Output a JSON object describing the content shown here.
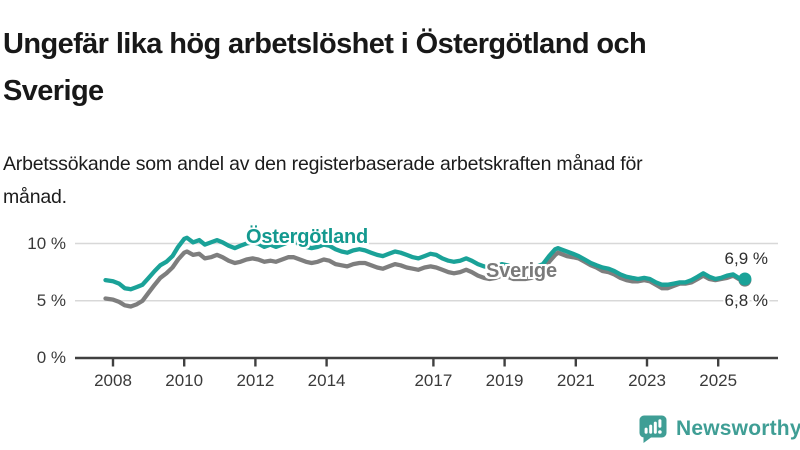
{
  "header": {
    "title": "Ungefär lika hög arbetslöshet i Östergötland och Sverige",
    "subtitle": "Arbetssökande som andel av den registerbaserade arbetskraften månad för månad."
  },
  "chart_data": {
    "type": "line",
    "title": "Ungefär lika hög arbetslöshet i Östergötland och Sverige",
    "subtitle": "Arbetssökande som andel av den registerbaserade arbetskraften månad för månad.",
    "unit": "%",
    "xlabel": "",
    "ylabel": "",
    "x_range": [
      2007.7,
      2026.6
    ],
    "ylim": [
      0,
      10.9
    ],
    "grid": "horizontal",
    "x_ticks": [
      "2008",
      "2010",
      "2012",
      "2014",
      "2017",
      "2019",
      "2021",
      "2023",
      "2025"
    ],
    "x_tick_years": [
      2008,
      2010,
      2012,
      2014,
      2017,
      2019,
      2021,
      2023,
      2025
    ],
    "y_ticks": [
      {
        "value": 0,
        "label": "0 %"
      },
      {
        "value": 5,
        "label": "5 %"
      },
      {
        "value": 10,
        "label": "10 %"
      }
    ],
    "legend_position": "inline-labels-on-lines",
    "series": [
      {
        "name": "Östergötland",
        "color": "#1aa298",
        "end_label": "6,9 %",
        "end_value": 6.9,
        "end_dot": true,
        "points": [
          [
            2007.79,
            6.8
          ],
          [
            2008.0,
            6.7
          ],
          [
            2008.17,
            6.5
          ],
          [
            2008.33,
            6.1
          ],
          [
            2008.5,
            6.0
          ],
          [
            2008.67,
            6.2
          ],
          [
            2008.83,
            6.4
          ],
          [
            2009.0,
            7.0
          ],
          [
            2009.17,
            7.6
          ],
          [
            2009.33,
            8.1
          ],
          [
            2009.5,
            8.4
          ],
          [
            2009.67,
            8.9
          ],
          [
            2009.83,
            9.7
          ],
          [
            2010.0,
            10.4
          ],
          [
            2010.08,
            10.5
          ],
          [
            2010.25,
            10.1
          ],
          [
            2010.42,
            10.3
          ],
          [
            2010.58,
            9.9
          ],
          [
            2010.75,
            10.1
          ],
          [
            2010.92,
            10.3
          ],
          [
            2011.08,
            10.1
          ],
          [
            2011.25,
            9.8
          ],
          [
            2011.42,
            9.6
          ],
          [
            2011.58,
            9.8
          ],
          [
            2011.75,
            10.0
          ],
          [
            2011.92,
            10.1
          ],
          [
            2012.08,
            10.0
          ],
          [
            2012.25,
            9.7
          ],
          [
            2012.42,
            9.9
          ],
          [
            2012.58,
            9.7
          ],
          [
            2012.75,
            9.9
          ],
          [
            2012.92,
            10.1
          ],
          [
            2013.08,
            10.2
          ],
          [
            2013.25,
            9.9
          ],
          [
            2013.42,
            9.7
          ],
          [
            2013.58,
            9.6
          ],
          [
            2013.75,
            9.7
          ],
          [
            2013.92,
            9.9
          ],
          [
            2014.08,
            9.8
          ],
          [
            2014.25,
            9.5
          ],
          [
            2014.42,
            9.3
          ],
          [
            2014.58,
            9.2
          ],
          [
            2014.75,
            9.4
          ],
          [
            2014.92,
            9.5
          ],
          [
            2015.08,
            9.4
          ],
          [
            2015.25,
            9.2
          ],
          [
            2015.42,
            9.0
          ],
          [
            2015.58,
            8.9
          ],
          [
            2015.75,
            9.1
          ],
          [
            2015.92,
            9.3
          ],
          [
            2016.08,
            9.2
          ],
          [
            2016.25,
            9.0
          ],
          [
            2016.42,
            8.8
          ],
          [
            2016.58,
            8.7
          ],
          [
            2016.75,
            8.9
          ],
          [
            2016.92,
            9.1
          ],
          [
            2017.08,
            9.0
          ],
          [
            2017.25,
            8.7
          ],
          [
            2017.42,
            8.5
          ],
          [
            2017.58,
            8.4
          ],
          [
            2017.75,
            8.5
          ],
          [
            2017.92,
            8.7
          ],
          [
            2018.08,
            8.5
          ],
          [
            2018.25,
            8.2
          ],
          [
            2018.42,
            8.0
          ],
          [
            2018.58,
            7.9
          ],
          [
            2018.75,
            8.0
          ],
          [
            2018.92,
            8.2
          ],
          [
            2019.08,
            8.1
          ],
          [
            2019.25,
            7.9
          ],
          [
            2019.42,
            7.8
          ],
          [
            2019.58,
            7.8
          ],
          [
            2019.75,
            7.9
          ],
          [
            2019.92,
            8.0
          ],
          [
            2020.08,
            8.2
          ],
          [
            2020.25,
            8.9
          ],
          [
            2020.42,
            9.5
          ],
          [
            2020.5,
            9.6
          ],
          [
            2020.58,
            9.5
          ],
          [
            2020.75,
            9.3
          ],
          [
            2020.92,
            9.1
          ],
          [
            2021.08,
            8.9
          ],
          [
            2021.25,
            8.6
          ],
          [
            2021.42,
            8.3
          ],
          [
            2021.58,
            8.1
          ],
          [
            2021.75,
            7.9
          ],
          [
            2021.92,
            7.8
          ],
          [
            2022.08,
            7.6
          ],
          [
            2022.25,
            7.3
          ],
          [
            2022.42,
            7.1
          ],
          [
            2022.58,
            7.0
          ],
          [
            2022.75,
            6.9
          ],
          [
            2022.92,
            7.0
          ],
          [
            2023.08,
            6.9
          ],
          [
            2023.25,
            6.6
          ],
          [
            2023.42,
            6.4
          ],
          [
            2023.58,
            6.4
          ],
          [
            2023.75,
            6.5
          ],
          [
            2023.92,
            6.6
          ],
          [
            2024.08,
            6.6
          ],
          [
            2024.25,
            6.8
          ],
          [
            2024.42,
            7.1
          ],
          [
            2024.58,
            7.4
          ],
          [
            2024.75,
            7.1
          ],
          [
            2024.92,
            6.9
          ],
          [
            2025.08,
            7.0
          ],
          [
            2025.25,
            7.2
          ],
          [
            2025.42,
            7.3
          ],
          [
            2025.58,
            7.0
          ],
          [
            2025.75,
            6.9
          ]
        ]
      },
      {
        "name": "Sverige",
        "color": "#7e7e7e",
        "end_label": "6,8 %",
        "end_value": 6.8,
        "end_dot": true,
        "points": [
          [
            2007.79,
            5.2
          ],
          [
            2008.0,
            5.1
          ],
          [
            2008.17,
            4.9
          ],
          [
            2008.33,
            4.6
          ],
          [
            2008.5,
            4.5
          ],
          [
            2008.67,
            4.7
          ],
          [
            2008.83,
            5.0
          ],
          [
            2009.0,
            5.7
          ],
          [
            2009.17,
            6.4
          ],
          [
            2009.33,
            7.0
          ],
          [
            2009.5,
            7.4
          ],
          [
            2009.67,
            7.9
          ],
          [
            2009.83,
            8.6
          ],
          [
            2010.0,
            9.2
          ],
          [
            2010.08,
            9.3
          ],
          [
            2010.25,
            9.0
          ],
          [
            2010.42,
            9.1
          ],
          [
            2010.58,
            8.7
          ],
          [
            2010.75,
            8.8
          ],
          [
            2010.92,
            9.0
          ],
          [
            2011.08,
            8.8
          ],
          [
            2011.25,
            8.5
          ],
          [
            2011.42,
            8.3
          ],
          [
            2011.58,
            8.4
          ],
          [
            2011.75,
            8.6
          ],
          [
            2011.92,
            8.7
          ],
          [
            2012.08,
            8.6
          ],
          [
            2012.25,
            8.4
          ],
          [
            2012.42,
            8.5
          ],
          [
            2012.58,
            8.4
          ],
          [
            2012.75,
            8.6
          ],
          [
            2012.92,
            8.8
          ],
          [
            2013.08,
            8.8
          ],
          [
            2013.25,
            8.6
          ],
          [
            2013.42,
            8.4
          ],
          [
            2013.58,
            8.3
          ],
          [
            2013.75,
            8.4
          ],
          [
            2013.92,
            8.6
          ],
          [
            2014.08,
            8.5
          ],
          [
            2014.25,
            8.2
          ],
          [
            2014.42,
            8.1
          ],
          [
            2014.58,
            8.0
          ],
          [
            2014.75,
            8.2
          ],
          [
            2014.92,
            8.3
          ],
          [
            2015.08,
            8.3
          ],
          [
            2015.25,
            8.1
          ],
          [
            2015.42,
            7.9
          ],
          [
            2015.58,
            7.8
          ],
          [
            2015.75,
            8.0
          ],
          [
            2015.92,
            8.2
          ],
          [
            2016.08,
            8.1
          ],
          [
            2016.25,
            7.9
          ],
          [
            2016.42,
            7.8
          ],
          [
            2016.58,
            7.7
          ],
          [
            2016.75,
            7.9
          ],
          [
            2016.92,
            8.0
          ],
          [
            2017.08,
            7.9
          ],
          [
            2017.25,
            7.7
          ],
          [
            2017.42,
            7.5
          ],
          [
            2017.58,
            7.4
          ],
          [
            2017.75,
            7.5
          ],
          [
            2017.92,
            7.7
          ],
          [
            2018.08,
            7.5
          ],
          [
            2018.25,
            7.2
          ],
          [
            2018.42,
            7.0
          ],
          [
            2018.58,
            6.9
          ],
          [
            2018.75,
            7.0
          ],
          [
            2018.92,
            7.2
          ],
          [
            2019.08,
            7.1
          ],
          [
            2019.25,
            6.9
          ],
          [
            2019.42,
            6.9
          ],
          [
            2019.58,
            6.9
          ],
          [
            2019.75,
            7.0
          ],
          [
            2019.92,
            7.2
          ],
          [
            2020.08,
            7.5
          ],
          [
            2020.25,
            8.4
          ],
          [
            2020.42,
            9.0
          ],
          [
            2020.5,
            9.2
          ],
          [
            2020.58,
            9.1
          ],
          [
            2020.75,
            8.9
          ],
          [
            2020.92,
            8.8
          ],
          [
            2021.08,
            8.7
          ],
          [
            2021.25,
            8.4
          ],
          [
            2021.42,
            8.1
          ],
          [
            2021.58,
            7.9
          ],
          [
            2021.75,
            7.6
          ],
          [
            2021.92,
            7.5
          ],
          [
            2022.08,
            7.3
          ],
          [
            2022.25,
            7.0
          ],
          [
            2022.42,
            6.8
          ],
          [
            2022.58,
            6.7
          ],
          [
            2022.75,
            6.7
          ],
          [
            2022.92,
            6.8
          ],
          [
            2023.08,
            6.7
          ],
          [
            2023.25,
            6.4
          ],
          [
            2023.42,
            6.1
          ],
          [
            2023.58,
            6.1
          ],
          [
            2023.75,
            6.3
          ],
          [
            2023.92,
            6.5
          ],
          [
            2024.08,
            6.5
          ],
          [
            2024.25,
            6.6
          ],
          [
            2024.42,
            6.9
          ],
          [
            2024.58,
            7.2
          ],
          [
            2024.75,
            6.9
          ],
          [
            2024.92,
            6.8
          ],
          [
            2025.08,
            6.9
          ],
          [
            2025.25,
            7.0
          ],
          [
            2025.42,
            7.2
          ],
          [
            2025.58,
            6.9
          ],
          [
            2025.75,
            6.8
          ]
        ]
      }
    ],
    "colors": {
      "grid": "#d8d8d8",
      "axis": "#404040",
      "tick_text": "#3a3a3a",
      "end_label_text": "#2e2e2e"
    }
  },
  "logo": {
    "text": "Newsworthy",
    "color": "#3f9e95",
    "icon": "chart-speech-bubble-icon"
  }
}
